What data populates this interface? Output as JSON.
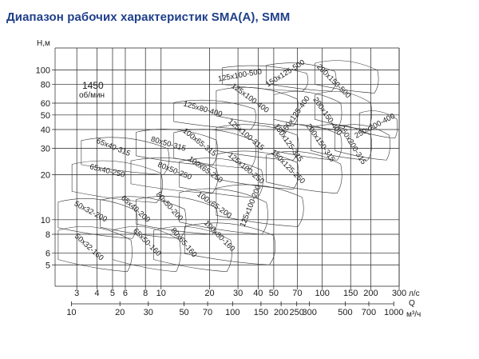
{
  "title": "Диапазон рабочих характеристик SMA(A), SMM",
  "chart_data": {
    "type": "area",
    "title": "Диапазон рабочих характеристик SMA(A), SMM",
    "ylabel": "Н,м",
    "xlabel": "Q",
    "x_unit": "л/с",
    "x2_unit": "м³/ч",
    "speed_label": "1450\nоб/мин",
    "x_scale": "log",
    "y_scale": "log",
    "xlim": [
      2.2,
      300
    ],
    "ylim": [
      3.6,
      140
    ],
    "grid": true,
    "y_ticks": [
      5,
      6,
      8,
      10,
      20,
      30,
      40,
      50,
      60,
      80,
      100
    ],
    "x_ticks": [
      3,
      4,
      5,
      6,
      8,
      10,
      20,
      30,
      40,
      50,
      70,
      100,
      150,
      200,
      300
    ],
    "x_tick_labels": [
      "3",
      "4",
      "5",
      "6",
      "8",
      "10",
      "20",
      "30",
      "40",
      "50",
      "70",
      "100",
      "150",
      "200",
      "300"
    ],
    "x2_ticks": [
      10,
      20,
      30,
      50,
      70,
      100,
      150,
      200,
      250,
      300,
      500,
      700,
      1000
    ],
    "x2_tick_labels": [
      "10",
      "20",
      "30",
      "50",
      "70",
      "100",
      "150",
      "200",
      "250",
      "300",
      "500",
      "700",
      "1000"
    ],
    "regions": [
      {
        "name": "50х32-160",
        "q": [
          2.3,
          6.5
        ],
        "h": [
          4.5,
          9.5
        ],
        "label_q": 3.5,
        "label_h": 6.4,
        "rot": 42
      },
      {
        "name": "50х32-200",
        "q": [
          2.3,
          7
        ],
        "h": [
          7.5,
          14.5
        ],
        "label_q": 3.6,
        "label_h": 11.0,
        "rot": 28
      },
      {
        "name": "65х40-250",
        "q": [
          2.8,
          10
        ],
        "h": [
          13,
          26
        ],
        "label_q": 4.6,
        "label_h": 20.5,
        "rot": 14
      },
      {
        "name": "65х40-315",
        "q": [
          3.2,
          11
        ],
        "h": [
          20,
          37
        ],
        "label_q": 5.0,
        "label_h": 29.5,
        "rot": 22
      },
      {
        "name": "65х50-160",
        "q": [
          5,
          13
        ],
        "h": [
          4.5,
          9.5
        ],
        "label_q": 8.0,
        "label_h": 6.9,
        "rot": 45
      },
      {
        "name": "65х40-200",
        "q": [
          4.2,
          14
        ],
        "h": [
          7.5,
          15
        ],
        "label_q": 6.8,
        "label_h": 11.5,
        "rot": 42
      },
      {
        "name": "80х50-315",
        "q": [
          7,
          22
        ],
        "h": [
          23,
          42
        ],
        "label_q": 11.0,
        "label_h": 31.0,
        "rot": 16
      },
      {
        "name": "80х50-250",
        "q": [
          6.5,
          22
        ],
        "h": [
          15,
          27
        ],
        "label_q": 12.0,
        "label_h": 20.5,
        "rot": 22
      },
      {
        "name": "80х50-200",
        "q": [
          7,
          22
        ],
        "h": [
          8,
          15
        ],
        "label_q": 11.0,
        "label_h": 12.0,
        "rot": 48
      },
      {
        "name": "80х65-160",
        "q": [
          9,
          27
        ],
        "h": [
          4.5,
          9.5
        ],
        "label_q": 13.5,
        "label_h": 6.9,
        "rot": 50
      },
      {
        "name": "125х80-400",
        "q": [
          12,
          38
        ],
        "h": [
          40,
          65
        ],
        "label_q": 18.0,
        "label_h": 53.0,
        "rot": 16
      },
      {
        "name": "100х65-315",
        "q": [
          12,
          38
        ],
        "h": [
          22,
          42
        ],
        "label_q": 17.0,
        "label_h": 32.0,
        "rot": 38
      },
      {
        "name": "100х65-250",
        "q": [
          13,
          42
        ],
        "h": [
          14,
          27
        ],
        "label_q": 18.5,
        "label_h": 21.0,
        "rot": 35
      },
      {
        "name": "100х65-200",
        "q": [
          13,
          45
        ],
        "h": [
          8,
          17
        ],
        "label_q": 21.0,
        "label_h": 12.2,
        "rot": 35
      },
      {
        "name": "100х80-160",
        "q": [
          14,
          50
        ],
        "h": [
          5,
          10
        ],
        "label_q": 22.5,
        "label_h": 7.6,
        "rot": 45
      },
      {
        "name": "125х100-500",
        "q": [
          24,
          80
        ],
        "h": [
          72,
          110
        ],
        "label_q": 31.0,
        "label_h": 89.0,
        "rot": -10
      },
      {
        "name": "125х100-400",
        "q": [
          22,
          70
        ],
        "h": [
          42,
          80
        ],
        "label_q": 35.0,
        "label_h": 63.0,
        "rot": 36
      },
      {
        "name": "125х100-315",
        "q": [
          22,
          70
        ],
        "h": [
          25,
          45
        ],
        "label_q": 33.0,
        "label_h": 36.0,
        "rot": 40
      },
      {
        "name": "125х100-250",
        "q": [
          22,
          70
        ],
        "h": [
          16,
          30
        ],
        "label_q": 33.0,
        "label_h": 21.5,
        "rot": 40
      },
      {
        "name": "125х100-200",
        "q": [
          22,
          75
        ],
        "h": [
          9,
          18
        ],
        "label_q": 37.0,
        "label_h": 12.2,
        "rot": -68
      },
      {
        "name": "150х125-500",
        "q": [
          45,
          120
        ],
        "h": [
          72,
          115
        ],
        "label_q": 60.0,
        "label_h": 92.0,
        "rot": -32
      },
      {
        "name": "150х125-400",
        "q": [
          50,
          130
        ],
        "h": [
          40,
          75
        ],
        "label_q": 70.0,
        "label_h": 49.0,
        "rot": -55
      },
      {
        "name": "150х125-315",
        "q": [
          50,
          130
        ],
        "h": [
          25,
          45
        ],
        "label_q": 60.0,
        "label_h": 32.0,
        "rot": 55
      },
      {
        "name": "150х125-250",
        "q": [
          45,
          130
        ],
        "h": [
          15,
          30
        ],
        "label_q": 60.0,
        "label_h": 22.0,
        "rot": 45
      },
      {
        "name": "200х150-500",
        "q": [
          90,
          220
        ],
        "h": [
          70,
          120
        ],
        "label_q": 115.0,
        "label_h": 82.0,
        "rot": 45
      },
      {
        "name": "200х150-400",
        "q": [
          90,
          200
        ],
        "h": [
          40,
          75
        ],
        "label_q": 105.0,
        "label_h": 48.0,
        "rot": 55
      },
      {
        "name": "200х150-315",
        "q": [
          85,
          200
        ],
        "h": [
          25,
          45
        ],
        "label_q": 95.0,
        "label_h": 32.0,
        "rot": 55
      },
      {
        "name": "250х200-315",
        "q": [
          120,
          260
        ],
        "h": [
          25,
          45
        ],
        "label_q": 150.0,
        "label_h": 31.0,
        "rot": 58
      },
      {
        "name": "250х200-400",
        "q": [
          170,
          290
        ],
        "h": [
          35,
          55
        ],
        "label_q": 215.0,
        "label_h": 41.0,
        "rot": -28
      }
    ]
  }
}
